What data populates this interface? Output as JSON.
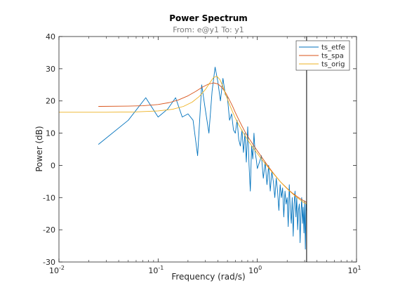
{
  "chart_data": {
    "type": "line",
    "title": "Power Spectrum",
    "subtitle": "From: e@y1  To: y1",
    "xlabel": "Frequency  (rad/s)",
    "ylabel": "Power (dB)",
    "xscale": "log",
    "xlim": [
      0.01,
      10
    ],
    "ylim": [
      -30,
      40
    ],
    "xticks": [
      0.01,
      0.1,
      1,
      10
    ],
    "yticks": [
      -30,
      -20,
      -10,
      0,
      10,
      20,
      30,
      40
    ],
    "grid": false,
    "legend": {
      "position": "top-right",
      "entries": [
        "ts_etfe",
        "ts_spa",
        "ts_orig"
      ]
    },
    "vertical_marker": {
      "x": 3.14,
      "color": "#000000"
    },
    "colors": {
      "ts_etfe": "#0072bd",
      "ts_spa": "#d95319",
      "ts_orig": "#edb120"
    },
    "series": [
      {
        "name": "ts_etfe",
        "x": [
          0.025,
          0.05,
          0.075,
          0.1,
          0.125,
          0.15,
          0.175,
          0.2,
          0.225,
          0.25,
          0.275,
          0.3,
          0.325,
          0.35,
          0.375,
          0.4,
          0.425,
          0.45,
          0.475,
          0.5,
          0.525,
          0.55,
          0.575,
          0.6,
          0.625,
          0.65,
          0.675,
          0.7,
          0.725,
          0.75,
          0.775,
          0.8,
          0.825,
          0.85,
          0.875,
          0.9,
          0.925,
          0.95,
          0.975,
          1.0,
          1.05,
          1.1,
          1.15,
          1.2,
          1.25,
          1.3,
          1.35,
          1.4,
          1.45,
          1.5,
          1.55,
          1.6,
          1.65,
          1.7,
          1.75,
          1.8,
          1.85,
          1.9,
          1.95,
          2.0,
          2.05,
          2.1,
          2.15,
          2.2,
          2.25,
          2.3,
          2.35,
          2.4,
          2.45,
          2.5,
          2.55,
          2.6,
          2.65,
          2.7,
          2.75,
          2.8,
          2.85,
          2.9,
          2.95,
          3.0,
          3.05,
          3.1,
          3.14
        ],
        "y": [
          6.5,
          14,
          21,
          15,
          17.5,
          21,
          15,
          16,
          14,
          3,
          25,
          17,
          10,
          23,
          30.5,
          26,
          20,
          27,
          22,
          21,
          14,
          16,
          11,
          10,
          14,
          8,
          6,
          11,
          4,
          10,
          1,
          12,
          0,
          -8,
          6,
          2,
          10,
          4,
          2,
          -1,
          1,
          3,
          -4,
          1,
          -6,
          0,
          -8,
          -2,
          -5,
          -10,
          -4,
          -8,
          -14,
          -6,
          -10,
          -7,
          -16,
          -8,
          -12,
          -10,
          -19,
          -6,
          -14,
          -18,
          -10,
          -22,
          -12,
          -8,
          -16,
          -10,
          -20,
          -14,
          -12,
          -24,
          -15,
          -10,
          -18,
          -13,
          -21,
          -11,
          -26,
          -12,
          -14
        ]
      },
      {
        "name": "ts_spa",
        "x": [
          0.025,
          0.05,
          0.07,
          0.1,
          0.13,
          0.16,
          0.2,
          0.24,
          0.28,
          0.32,
          0.36,
          0.4,
          0.44,
          0.48,
          0.52,
          0.56,
          0.6,
          0.65,
          0.7,
          0.75,
          0.8,
          0.9,
          1.0,
          1.1,
          1.2,
          1.3,
          1.4,
          1.5,
          1.7,
          1.9,
          2.1,
          2.3,
          2.5,
          2.7,
          2.9,
          3.14
        ],
        "y": [
          18.3,
          18.4,
          18.5,
          18.9,
          19.5,
          20.3,
          21.6,
          23.0,
          24.3,
          25.2,
          25.6,
          25.3,
          24.2,
          22.5,
          20.5,
          18.5,
          16.4,
          14.2,
          12.2,
          10.5,
          9.0,
          6.6,
          4.5,
          2.7,
          1.0,
          -0.5,
          -1.8,
          -3.0,
          -5.0,
          -6.5,
          -7.8,
          -8.8,
          -9.6,
          -10.3,
          -10.9,
          -11.5
        ]
      },
      {
        "name": "ts_orig",
        "x": [
          0.01,
          0.03,
          0.06,
          0.1,
          0.14,
          0.18,
          0.22,
          0.26,
          0.3,
          0.33,
          0.36,
          0.39,
          0.42,
          0.45,
          0.48,
          0.52,
          0.56,
          0.6,
          0.65,
          0.7,
          0.75,
          0.8,
          0.9,
          1.0,
          1.1,
          1.2,
          1.3,
          1.4,
          1.5,
          1.7,
          1.9,
          2.1,
          2.3,
          2.5,
          2.7,
          2.9,
          3.14
        ],
        "y": [
          16.5,
          16.5,
          16.6,
          16.9,
          17.4,
          18.3,
          19.6,
          21.4,
          23.6,
          25.5,
          27.2,
          27.7,
          26.6,
          24.5,
          22.0,
          19.2,
          16.8,
          14.7,
          12.6,
          10.8,
          9.3,
          7.9,
          5.6,
          3.7,
          2.0,
          0.5,
          -0.8,
          -2.0,
          -3.1,
          -5.0,
          -6.6,
          -7.9,
          -9.0,
          -9.9,
          -10.7,
          -11.4,
          -12.0
        ]
      }
    ]
  }
}
